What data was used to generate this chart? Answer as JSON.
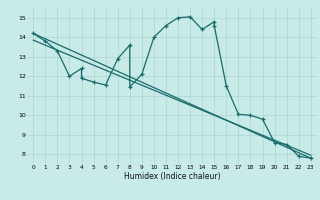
{
  "xlabel": "Humidex (Indice chaleur)",
  "ylabel": "",
  "bg_color": "#c8ebe8",
  "grid_color": "#b0d8d4",
  "line_color": "#1a6b6b",
  "xlim": [
    -0.5,
    23.5
  ],
  "ylim": [
    7.5,
    15.5
  ],
  "xticks": [
    0,
    1,
    2,
    3,
    4,
    5,
    6,
    7,
    8,
    9,
    10,
    11,
    12,
    13,
    14,
    15,
    16,
    17,
    18,
    19,
    20,
    21,
    22,
    23
  ],
  "yticks": [
    8,
    9,
    10,
    11,
    12,
    13,
    14,
    15
  ],
  "curve1_x": [
    0,
    1,
    2,
    3,
    4,
    4,
    5,
    6,
    7,
    8,
    8,
    9,
    10,
    11,
    12,
    13,
    14,
    15,
    15,
    16,
    17,
    18,
    19,
    20,
    21,
    22,
    23
  ],
  "curve1_y": [
    14.2,
    13.8,
    13.3,
    12.0,
    12.4,
    11.9,
    11.7,
    11.55,
    12.9,
    13.6,
    11.45,
    12.1,
    14.0,
    14.6,
    15.0,
    15.05,
    14.4,
    14.8,
    14.6,
    11.5,
    10.05,
    10.0,
    9.8,
    8.6,
    8.5,
    7.9,
    7.8
  ],
  "line2_x": [
    0,
    23
  ],
  "line2_y": [
    14.2,
    7.8
  ],
  "line3_x": [
    0,
    23
  ],
  "line3_y": [
    13.85,
    7.95
  ]
}
